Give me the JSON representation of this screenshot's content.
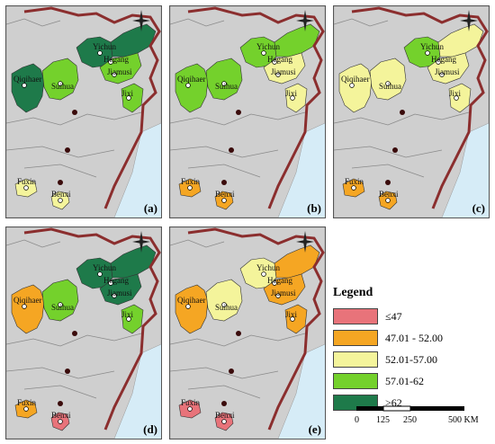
{
  "panels": [
    {
      "label": "(a)",
      "colors": {
        "qiqihaer": "#1e7a4a",
        "suihua": "#74d12c",
        "yichun": "#1e7a4a",
        "hegang": "#1e7a4a",
        "jiamusi": "#74d12c",
        "jixi": "#74d12c",
        "fuxin": "#f4f49b",
        "benxi": "#f4f49b"
      }
    },
    {
      "label": "(b)",
      "colors": {
        "qiqihaer": "#74d12c",
        "suihua": "#74d12c",
        "yichun": "#74d12c",
        "hegang": "#74d12c",
        "jiamusi": "#f4f49b",
        "jixi": "#f4f49b",
        "fuxin": "#f5a623",
        "benxi": "#f5a623"
      }
    },
    {
      "label": "(c)",
      "colors": {
        "qiqihaer": "#f4f49b",
        "suihua": "#f4f49b",
        "yichun": "#74d12c",
        "hegang": "#f4f49b",
        "jiamusi": "#f4f49b",
        "jixi": "#f4f49b",
        "fuxin": "#f5a623",
        "benxi": "#f5a623"
      }
    },
    {
      "label": "(d)",
      "colors": {
        "qiqihaer": "#f5a623",
        "suihua": "#74d12c",
        "yichun": "#1e7a4a",
        "hegang": "#1e7a4a",
        "jiamusi": "#1e7a4a",
        "jixi": "#74d12c",
        "fuxin": "#f5a623",
        "benxi": "#e8737a"
      }
    },
    {
      "label": "(e)",
      "colors": {
        "qiqihaer": "#f5a623",
        "suihua": "#f4f49b",
        "yichun": "#f4f49b",
        "hegang": "#f5a623",
        "jiamusi": "#f5a623",
        "jixi": "#f5a623",
        "fuxin": "#e8737a",
        "benxi": "#e8737a"
      }
    }
  ],
  "cities": {
    "qiqihaer": "Qiqihaer",
    "suihua": "Suihua",
    "yichun": "Yichun",
    "hegang": "Hegang",
    "jiamusi": "Jiamusi",
    "jixi": "Jixi",
    "fuxin": "Fuxin",
    "benxi": "Benxi"
  },
  "legend": {
    "title": "Legend",
    "items": [
      {
        "label": "≤47",
        "color": "#e8737a"
      },
      {
        "label": "47.01 - 52.00",
        "color": "#f5a623"
      },
      {
        "label": "52.01-57.00",
        "color": "#f4f49b"
      },
      {
        "label": "57.01-62",
        "color": "#74d12c"
      },
      {
        "label": ">62",
        "color": "#1e7a4a"
      }
    ]
  },
  "scale": {
    "t0": "0",
    "t1": "125",
    "t2": "250",
    "t3": "500 KM"
  },
  "colors": {
    "province_fill": "#cfcfcf",
    "sea": "#d6ecf7",
    "border": "#8b2e2e"
  }
}
